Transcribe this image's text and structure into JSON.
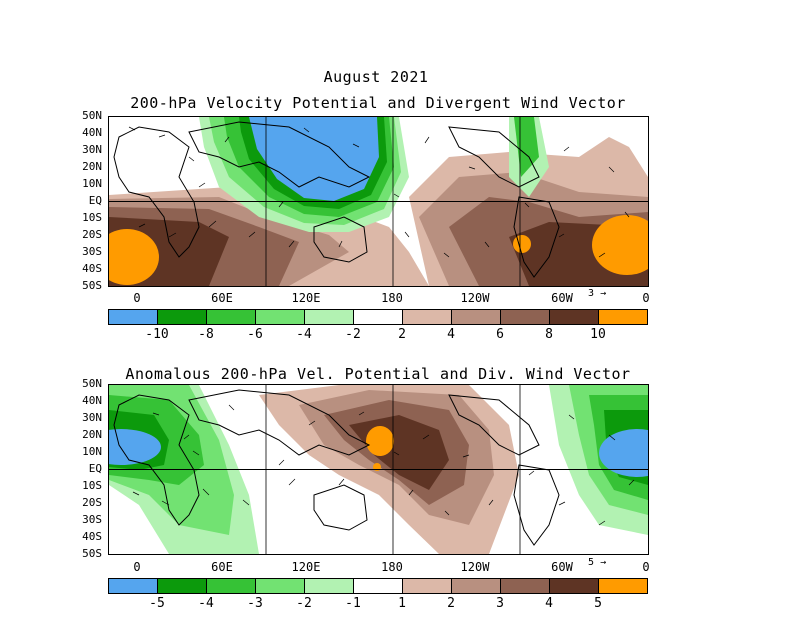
{
  "main_title": "August 2021",
  "panel1": {
    "title": "200-hPa Velocity Potential and Divergent Wind Vector",
    "lat_labels": [
      "50N",
      "40N",
      "30N",
      "20N",
      "10N",
      "EQ",
      "10S",
      "20S",
      "30S",
      "40S",
      "50S"
    ],
    "lon_labels": [
      "0",
      "60E",
      "120E",
      "180",
      "120W",
      "60W",
      "0"
    ],
    "ref_vector": "3",
    "colorbar_labels": [
      "-10",
      "-8",
      "-6",
      "-4",
      "-2",
      "2",
      "4",
      "6",
      "8",
      "10"
    ]
  },
  "panel2": {
    "title": "Anomalous 200-hPa Vel. Potential and Div. Wind Vector",
    "lat_labels": [
      "50N",
      "40N",
      "30N",
      "20N",
      "10N",
      "EQ",
      "10S",
      "20S",
      "30S",
      "40S",
      "50S"
    ],
    "lon_labels": [
      "0",
      "60E",
      "120E",
      "180",
      "120W",
      "60W",
      "0"
    ],
    "ref_vector": "5",
    "colorbar_labels": [
      "-5",
      "-4",
      "-3",
      "-2",
      "-1",
      "1",
      "2",
      "3",
      "4",
      "5"
    ]
  },
  "colors": {
    "blue": "#55a5ee",
    "green_dark": "#0c9a0c",
    "green_2": "#36c236",
    "green_3": "#72e272",
    "green_light": "#b2f2b2",
    "white": "#ffffff",
    "brown_light": "#dcb8a8",
    "brown_2": "#b89080",
    "brown_3": "#8e6252",
    "brown_dark": "#5e3424",
    "orange": "#ff9b00"
  }
}
